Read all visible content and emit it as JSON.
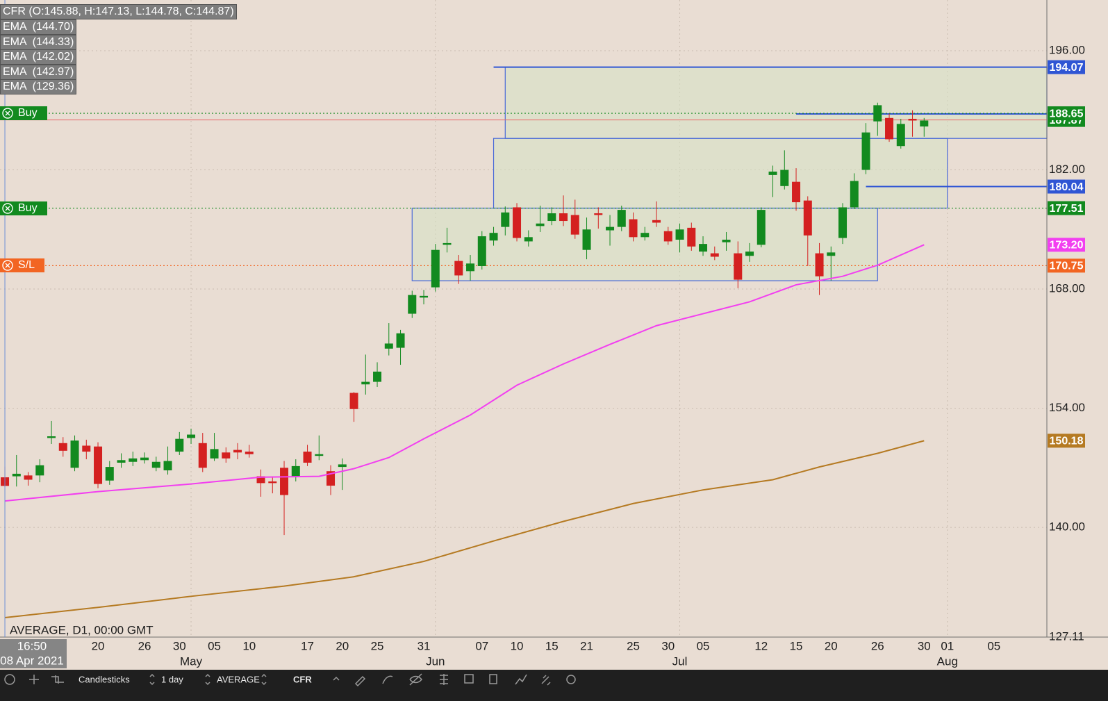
{
  "header": {
    "symbol_label": "CFR (O:145.88, H:147.13, L:144.78, C:144.87)",
    "indicators": [
      "EMA  (144.70)",
      "EMA  (144.33)",
      "EMA  (142.02)",
      "EMA  (142.97)",
      "EMA  (129.36)"
    ]
  },
  "chart_data": {
    "type": "candlestick",
    "up_color": "#128a1f",
    "down_color": "#d42020",
    "open": [
      145.88,
      146.0,
      146.1,
      146.1,
      150.5,
      149.9,
      147.0,
      149.6,
      149.5,
      145.5,
      147.6,
      147.7,
      147.9,
      147.0,
      146.7,
      148.9,
      150.5,
      149.9,
      148.1,
      148.8,
      149.1,
      148.9,
      146.0,
      145.4,
      147.0,
      145.9,
      148.9,
      148.4,
      146.6,
      147.1,
      155.8,
      156.8,
      157.1,
      161.0,
      161.1,
      165.1,
      167.0,
      168.2,
      173.2,
      171.3,
      170.1,
      170.7,
      173.7,
      175.3,
      177.6,
      173.6,
      175.4,
      176.0,
      176.9,
      176.7,
      172.6,
      176.9,
      174.9,
      175.3,
      176.2,
      174.1,
      176.1,
      174.8,
      173.8,
      175.2,
      172.4,
      172.2,
      173.5,
      172.2,
      171.9,
      173.2,
      181.4,
      180.1,
      180.6,
      178.4,
      172.2,
      171.9,
      174.0,
      177.6,
      182.0,
      187.7,
      188.1,
      184.8,
      188.0,
      187.1
    ],
    "high": [
      147.13,
      148.5,
      146.5,
      148.0,
      152.5,
      150.6,
      150.8,
      150.3,
      150.0,
      147.8,
      148.7,
      148.9,
      148.8,
      148.3,
      149.5,
      151.2,
      151.6,
      151.1,
      151.1,
      149.4,
      149.9,
      149.7,
      146.8,
      146.0,
      147.8,
      148.0,
      149.7,
      150.8,
      147.3,
      148.1,
      155.9,
      160.3,
      159.4,
      164.0,
      163.2,
      167.8,
      167.9,
      173.3,
      175.2,
      172.0,
      172.0,
      174.8,
      175.3,
      177.7,
      178.1,
      174.9,
      177.8,
      177.6,
      179.0,
      178.5,
      176.4,
      177.6,
      176.7,
      177.8,
      177.0,
      175.3,
      178.3,
      175.3,
      175.7,
      175.8,
      174.2,
      173.0,
      174.7,
      173.6,
      173.4,
      177.6,
      182.5,
      184.3,
      182.2,
      178.9,
      173.4,
      173.0,
      178.1,
      181.6,
      187.5,
      189.9,
      188.6,
      188.0,
      189.0,
      188.1
    ],
    "low": [
      144.78,
      144.8,
      144.9,
      145.3,
      149.8,
      148.3,
      146.6,
      148.0,
      144.6,
      145.0,
      147.0,
      147.2,
      147.5,
      146.6,
      146.2,
      148.5,
      149.8,
      146.5,
      147.8,
      147.6,
      148.0,
      148.2,
      143.6,
      144.0,
      139.1,
      145.4,
      147.2,
      147.9,
      143.8,
      144.4,
      152.4,
      155.6,
      156.5,
      160.2,
      159.1,
      164.6,
      166.2,
      167.7,
      172.3,
      168.6,
      169.0,
      170.3,
      173.1,
      174.3,
      173.6,
      173.0,
      174.7,
      175.5,
      175.4,
      173.9,
      171.5,
      175.1,
      173.1,
      174.8,
      173.6,
      173.7,
      175.3,
      173.2,
      172.3,
      172.5,
      171.9,
      171.4,
      172.5,
      168.1,
      171.2,
      172.9,
      178.8,
      179.7,
      177.2,
      170.7,
      167.3,
      169.0,
      173.3,
      177.4,
      181.5,
      186.0,
      185.3,
      184.5,
      185.9,
      185.9
    ],
    "close": [
      144.87,
      146.3,
      145.6,
      147.3,
      150.7,
      149.0,
      150.2,
      148.9,
      145.1,
      147.1,
      147.9,
      148.1,
      148.2,
      147.7,
      147.8,
      150.4,
      150.9,
      147.0,
      149.2,
      148.1,
      148.8,
      148.6,
      145.2,
      145.2,
      143.8,
      147.2,
      147.6,
      148.6,
      144.9,
      147.4,
      153.9,
      157.1,
      158.3,
      161.6,
      162.8,
      167.3,
      167.2,
      172.6,
      173.4,
      169.6,
      171.0,
      174.2,
      174.6,
      177.0,
      174.0,
      174.1,
      175.7,
      176.9,
      176.0,
      174.4,
      175.0,
      176.7,
      175.3,
      177.3,
      174.1,
      174.6,
      175.8,
      173.6,
      175.0,
      173.0,
      173.3,
      171.8,
      173.8,
      169.1,
      172.4,
      177.3,
      181.8,
      182.0,
      178.2,
      174.3,
      169.5,
      172.3,
      177.6,
      180.7,
      186.4,
      189.6,
      185.6,
      187.4,
      187.8,
      187.8
    ],
    "xlim": [
      -0.42,
      89.55
    ],
    "xticks": [
      {
        "value": 8,
        "label": "20"
      },
      {
        "value": 12,
        "label": "26"
      },
      {
        "value": 15,
        "label": "30"
      },
      {
        "value": 18,
        "label": "05"
      },
      {
        "value": 21,
        "label": "10"
      },
      {
        "value": 26,
        "label": "17"
      },
      {
        "value": 29,
        "label": "20"
      },
      {
        "value": 32,
        "label": "25"
      },
      {
        "value": 36,
        "label": "31"
      },
      {
        "value": 41,
        "label": "07"
      },
      {
        "value": 44,
        "label": "10"
      },
      {
        "value": 47,
        "label": "15"
      },
      {
        "value": 50,
        "label": "21"
      },
      {
        "value": 54,
        "label": "25"
      },
      {
        "value": 57,
        "label": "30"
      },
      {
        "value": 60,
        "label": "05"
      },
      {
        "value": 65,
        "label": "12"
      },
      {
        "value": 68,
        "label": "15"
      },
      {
        "value": 71,
        "label": "20"
      },
      {
        "value": 75,
        "label": "26"
      },
      {
        "value": 79,
        "label": "30"
      },
      {
        "value": 81,
        "label": "01"
      },
      {
        "value": 85,
        "label": "05"
      }
    ],
    "month_ticks": [
      {
        "value": 16,
        "label": "May"
      },
      {
        "value": 37,
        "label": "Jun"
      },
      {
        "value": 58,
        "label": "Jul"
      },
      {
        "value": 81,
        "label": "Aug"
      }
    ],
    "ylim": [
      127.11,
      201.96
    ],
    "yticks": [
      127.11,
      {
        "value": 140,
        "label": "140.00"
      },
      {
        "value": 154,
        "label": "154.00"
      },
      {
        "value": 168,
        "label": "168.00"
      },
      {
        "value": 182,
        "label": "182.00"
      },
      {
        "value": 196,
        "label": "196.00"
      }
    ],
    "grid": true,
    "lines": [
      {
        "color": "#f23ff0",
        "x": [
          0,
          8,
          16,
          22,
          27,
          30,
          33,
          36,
          40,
          44,
          48,
          52,
          56,
          60,
          64,
          68,
          72,
          75,
          79
        ],
        "values": [
          143.1,
          144.2,
          145.1,
          145.9,
          146.0,
          146.9,
          148.2,
          150.4,
          153.2,
          156.7,
          159.2,
          161.5,
          163.7,
          165.1,
          166.5,
          168.5,
          169.5,
          170.8,
          173.2
        ],
        "last_label": "173.20"
      },
      {
        "color": "#b57a22",
        "x": [
          0,
          8,
          16,
          24,
          30,
          36,
          42,
          48,
          54,
          60,
          66,
          70,
          75,
          79
        ],
        "values": [
          129.4,
          130.6,
          131.9,
          133.1,
          134.2,
          136.0,
          138.4,
          140.7,
          142.8,
          144.4,
          145.6,
          147.1,
          148.7,
          150.18
        ]
      }
    ],
    "zones": [
      {
        "x": [
          35,
          75
        ],
        "y": [
          168.98,
          177.51
        ]
      },
      {
        "x": [
          42,
          81
        ],
        "y": [
          177.51,
          185.7
        ]
      },
      {
        "x": [
          43,
          89.55
        ],
        "y": [
          185.7,
          194.07
        ]
      }
    ],
    "levels": [
      {
        "price": 194.07,
        "color": "#2f55d4",
        "style": "solid",
        "from": 42
      },
      {
        "price": 188.57,
        "color": "#2f55d4",
        "style": "solid",
        "from": 68
      },
      {
        "price": 187.87,
        "color": "#e86a6a",
        "style": "thin",
        "badge_color": "#128a1f"
      },
      {
        "price": 188.65,
        "color": "#128a1f",
        "style": "dotted",
        "tag": "Buy"
      },
      {
        "price": 180.04,
        "color": "#2f55d4",
        "style": "solid",
        "from": 74
      },
      {
        "price": 177.51,
        "color": "#128a1f",
        "style": "dotted",
        "tag": "Buy"
      },
      {
        "price": 170.75,
        "color": "#f26522",
        "style": "dotted",
        "tag": "S/L"
      }
    ]
  },
  "footer_info": "AVERAGE, D1, 00:00 GMT",
  "cursor": {
    "time": "16:50",
    "date": "08 Apr 2021"
  },
  "toolbar": {
    "chart_type": "Candlesticks",
    "interval": "1 day",
    "price_type": "AVERAGE",
    "symbol": "CFR"
  }
}
